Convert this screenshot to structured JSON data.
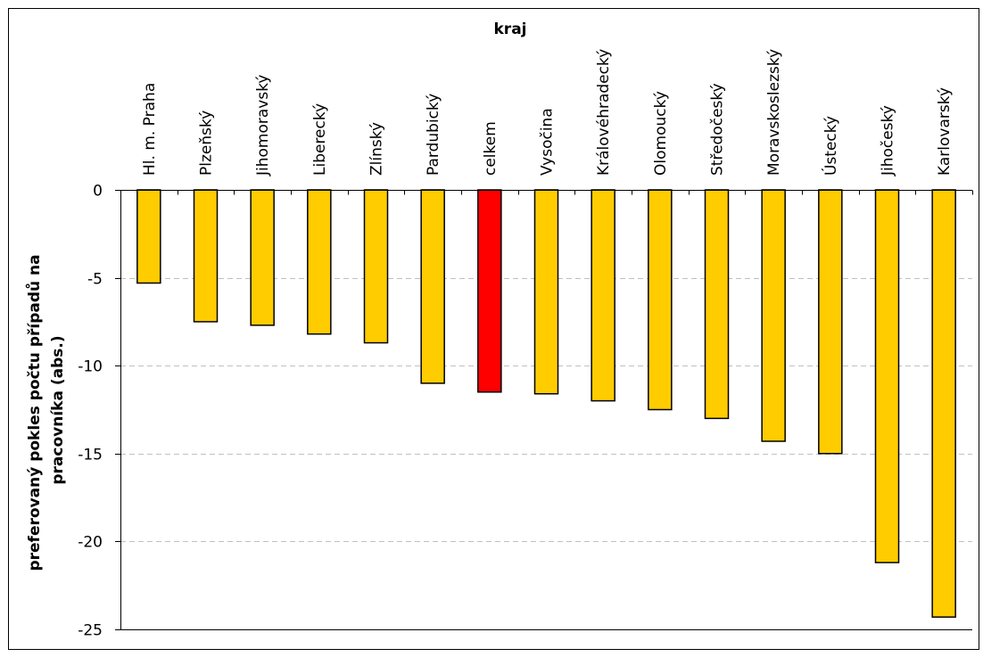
{
  "chart_data": {
    "type": "bar",
    "xlabel": "kraj",
    "ylabel_lines": [
      "preferovaný pokles počtu případů na",
      "pracovníka (abs.)"
    ],
    "categories": [
      "Hl. m. Praha",
      "Plzeňský",
      "Jihomoravský",
      "Liberecký",
      "Zlínský",
      "Pardubický",
      "celkem",
      "Vysočina",
      "Královéhradecký",
      "Olomoucký",
      "Středočeský",
      "Moravskoslezský",
      "Ústecký",
      "Jihočeský",
      "Karlovarský"
    ],
    "values": [
      -5.3,
      -7.5,
      -7.7,
      -8.2,
      -8.7,
      -11.0,
      -11.5,
      -11.6,
      -12.0,
      -12.5,
      -13.0,
      -14.3,
      -15.0,
      -21.2,
      -24.3
    ],
    "ylim": [
      -25,
      0
    ],
    "y_ticks": [
      0,
      -5,
      -10,
      -15,
      -20,
      -25
    ],
    "y_tick_labels": [
      "0",
      "-5",
      "-10",
      "-15",
      "-20",
      "-25"
    ],
    "grid": true,
    "colors": {
      "bar": "#FFCC00",
      "highlight": "#FF0000",
      "bar_edge": "#000000",
      "grid": "#C0C0C0"
    },
    "highlight_category": "celkem"
  }
}
